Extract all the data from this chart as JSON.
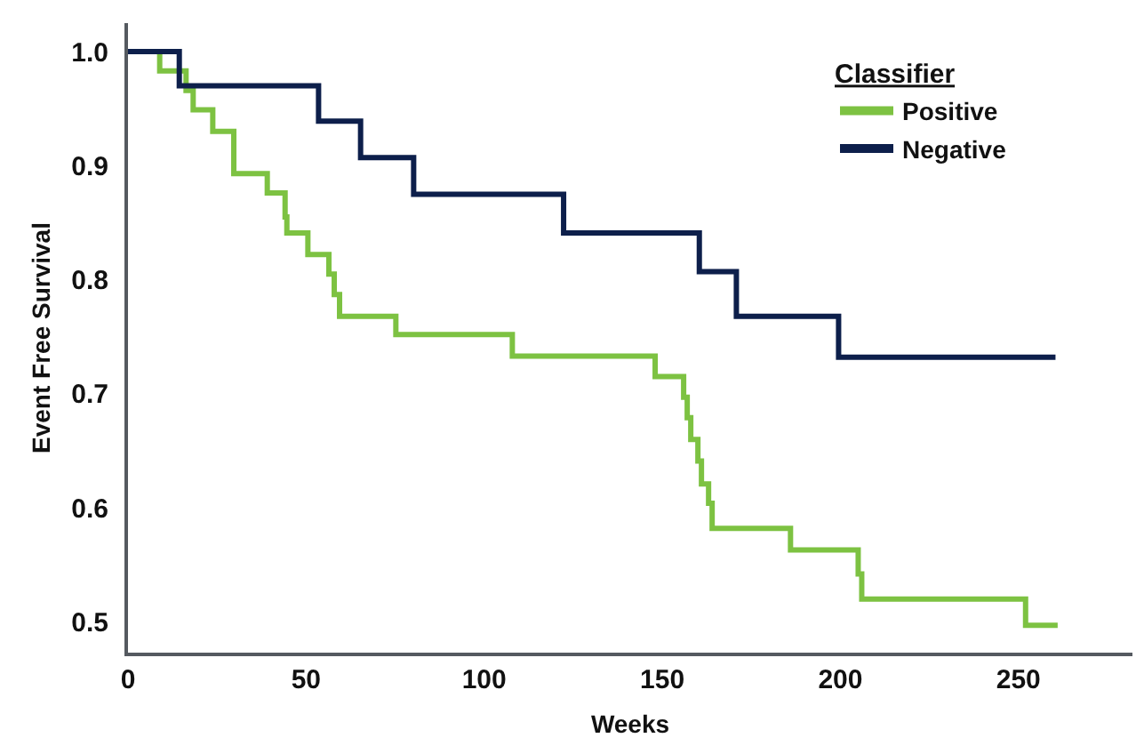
{
  "chart_data": {
    "type": "step",
    "xlabel": "Weeks",
    "ylabel": "Event Free Survival",
    "legend_title": "Classifier",
    "xlim": [
      0,
      282
    ],
    "ylim": [
      0.473,
      1.025
    ],
    "xticks": [
      0,
      50,
      100,
      150,
      200,
      250
    ],
    "yticks": [
      {
        "value": 0.5,
        "label": "0.5"
      },
      {
        "value": 0.6,
        "label": "0.6"
      },
      {
        "value": 0.7,
        "label": "0.7"
      },
      {
        "value": 0.8,
        "label": "0.8"
      },
      {
        "value": 0.9,
        "label": "0.9"
      },
      {
        "value": 1.0,
        "label": "1.0"
      }
    ],
    "grid": false,
    "legend": "top right",
    "line_style": "solid",
    "marker": "none",
    "series": [
      {
        "name": "Positive",
        "color": "#7dc242",
        "x": [
          0,
          8.9,
          16.3,
          18.3,
          23.8,
          29.7,
          39.1,
          44.1,
          44.6,
          50.5,
          56.4,
          57.9,
          59.4,
          75.2,
          107.9,
          148,
          156,
          157,
          158,
          160,
          161,
          163,
          164,
          186,
          205,
          206,
          252,
          261
        ],
        "values": [
          1.0,
          0.983,
          0.966,
          0.949,
          0.93,
          0.893,
          0.876,
          0.855,
          0.841,
          0.822,
          0.805,
          0.787,
          0.768,
          0.752,
          0.733,
          0.715,
          0.697,
          0.679,
          0.66,
          0.641,
          0.621,
          0.604,
          0.582,
          0.563,
          0.542,
          0.52,
          0.497,
          0.497
        ]
      },
      {
        "name": "Negative",
        "color": "#0d1f4b",
        "x": [
          0,
          14.4,
          53.5,
          65.3,
          80.2,
          122.3,
          160.4,
          170.8,
          199.5,
          260.4
        ],
        "values": [
          1.0,
          0.97,
          0.939,
          0.907,
          0.875,
          0.841,
          0.807,
          0.768,
          0.732,
          0.732
        ]
      }
    ]
  }
}
